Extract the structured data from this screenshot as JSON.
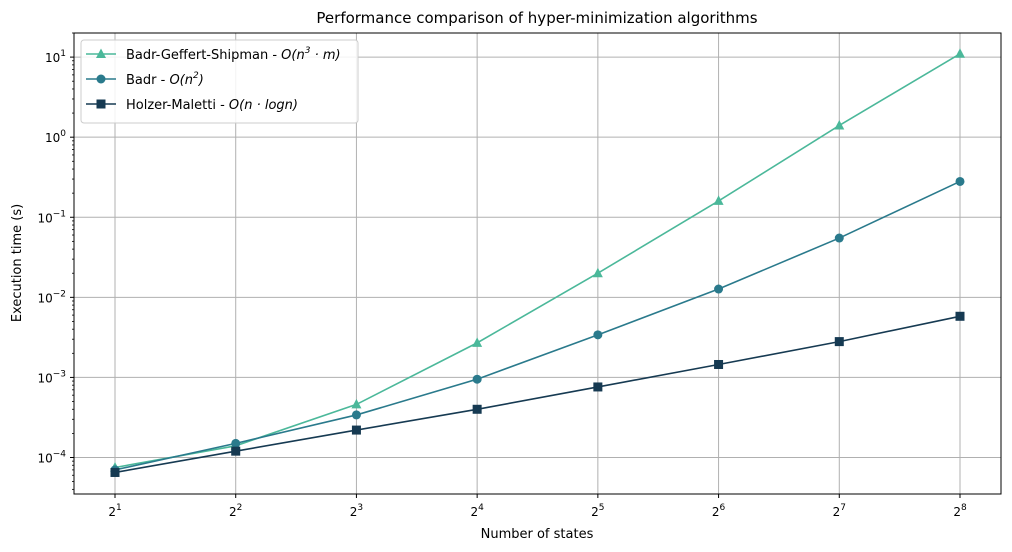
{
  "chart_data": {
    "type": "line",
    "title": "Performance comparison of hyper-minimization algorithms",
    "xlabel": "Number of states",
    "ylabel": "Execution time (s)",
    "x_scale": "log2",
    "y_scale": "log10",
    "x": [
      2,
      4,
      8,
      16,
      32,
      64,
      128,
      256
    ],
    "x_tick_labels": [
      {
        "base": "2",
        "exp": "1"
      },
      {
        "base": "2",
        "exp": "2"
      },
      {
        "base": "2",
        "exp": "3"
      },
      {
        "base": "2",
        "exp": "4"
      },
      {
        "base": "2",
        "exp": "5"
      },
      {
        "base": "2",
        "exp": "6"
      },
      {
        "base": "2",
        "exp": "7"
      },
      {
        "base": "2",
        "exp": "8"
      }
    ],
    "y_ticks": [
      0.0001,
      0.001,
      0.01,
      0.1,
      1,
      10
    ],
    "y_tick_labels": [
      {
        "base": "10",
        "exp": "−4"
      },
      {
        "base": "10",
        "exp": "−3"
      },
      {
        "base": "10",
        "exp": "−2"
      },
      {
        "base": "10",
        "exp": "−1"
      },
      {
        "base": "10",
        "exp": "0"
      },
      {
        "base": "10",
        "exp": "1"
      }
    ],
    "ylim": [
      3.5e-05,
      20
    ],
    "grid": true,
    "legend_position": "top-left",
    "series": [
      {
        "name": "Badr-Geffert-Shipman - O(n³ · m)",
        "legend": {
          "prefix": "Badr-Geffert-Shipman - ",
          "math": "O(n",
          "sup": "3",
          "suffix": " · m)"
        },
        "color": "#4bb89a",
        "marker": "triangle",
        "values": [
          7.5e-05,
          0.00014,
          0.00046,
          0.0027,
          0.02,
          0.16,
          1.4,
          11
        ]
      },
      {
        "name": "Badr - O(n²)",
        "legend": {
          "prefix": "Badr - ",
          "math": "O(n",
          "sup": "2",
          "suffix": ")"
        },
        "color": "#2a7a8c",
        "marker": "circle",
        "values": [
          7e-05,
          0.00015,
          0.00034,
          0.00095,
          0.0034,
          0.0127,
          0.055,
          0.28
        ]
      },
      {
        "name": "Holzer-Maletti - O(n · logn)",
        "legend": {
          "prefix": "Holzer-Maletti - ",
          "math": "O(n · logn)",
          "sup": "",
          "suffix": ""
        },
        "color": "#163a52",
        "marker": "square",
        "values": [
          6.5e-05,
          0.00012,
          0.00022,
          0.0004,
          0.00076,
          0.00145,
          0.0028,
          0.0058
        ]
      }
    ]
  }
}
